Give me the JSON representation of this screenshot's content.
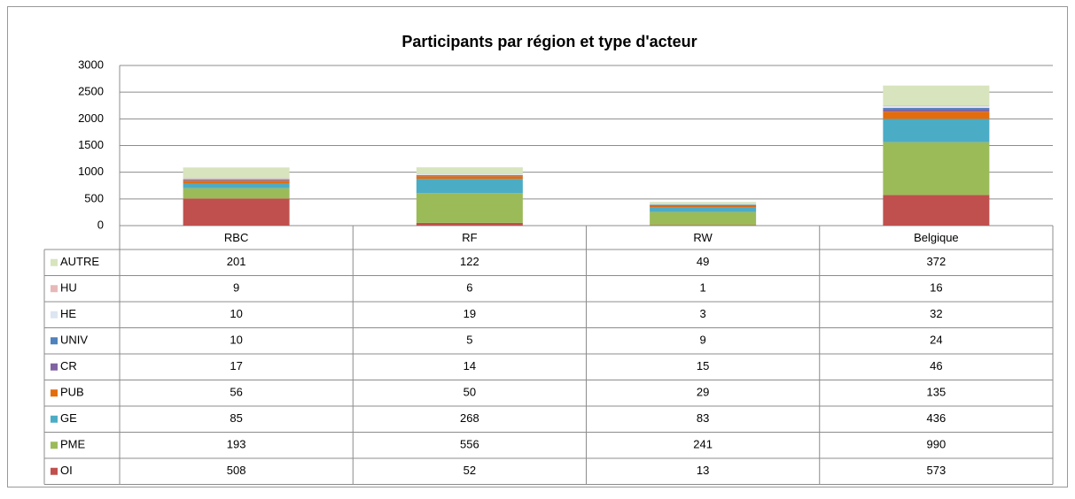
{
  "chart_data": {
    "type": "stacked_bar",
    "title": "Participants par région et type d'acteur",
    "categories": [
      "RBC",
      "RF",
      "RW",
      "Belgique"
    ],
    "series": [
      {
        "name": "AUTRE",
        "color": "#d7e4bd",
        "values": [
          201,
          122,
          49,
          372
        ]
      },
      {
        "name": "HU",
        "color": "#e6b9b8",
        "values": [
          9,
          6,
          1,
          16
        ]
      },
      {
        "name": "HE",
        "color": "#dce6f2",
        "values": [
          10,
          19,
          3,
          32
        ]
      },
      {
        "name": "UNIV",
        "color": "#4f81bd",
        "values": [
          10,
          5,
          9,
          24
        ]
      },
      {
        "name": "CR",
        "color": "#8064a2",
        "values": [
          17,
          14,
          15,
          46
        ]
      },
      {
        "name": "PUB",
        "color": "#e46c0a",
        "values": [
          56,
          50,
          29,
          135
        ]
      },
      {
        "name": "GE",
        "color": "#4bacc6",
        "values": [
          85,
          268,
          83,
          436
        ]
      },
      {
        "name": "PME",
        "color": "#9bbb59",
        "values": [
          193,
          556,
          241,
          990
        ]
      },
      {
        "name": "OI",
        "color": "#c0504d",
        "values": [
          508,
          52,
          13,
          573
        ]
      }
    ],
    "ylim": [
      0,
      3000
    ],
    "yticks": [
      0,
      500,
      1000,
      1500,
      2000,
      2500,
      3000
    ],
    "grid": true
  }
}
